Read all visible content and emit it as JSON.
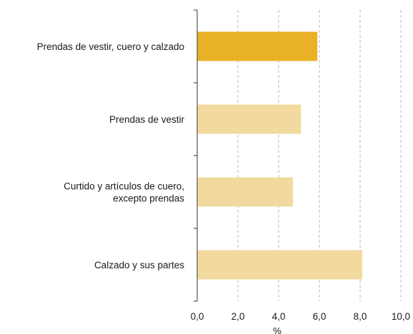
{
  "chart_data": {
    "type": "bar",
    "orientation": "horizontal",
    "categories": [
      [
        "Prendas de vestir, cuero y calzado"
      ],
      [
        "Prendas de vestir"
      ],
      [
        "Curtido y artículos de cuero,",
        "excepto prendas"
      ],
      [
        "Calzado y sus partes"
      ]
    ],
    "values": [
      5.9,
      5.1,
      4.7,
      8.1
    ],
    "bar_colors": [
      "#E9B125",
      "#F2DA9F",
      "#F2DA9F",
      "#F2DA9F"
    ],
    "xlabel": "%",
    "xlim": [
      0,
      10
    ],
    "xticks": [
      "0,0",
      "2,0",
      "4,0",
      "6,0",
      "8,0",
      "10,0"
    ],
    "grid": "vertical-dashed"
  }
}
